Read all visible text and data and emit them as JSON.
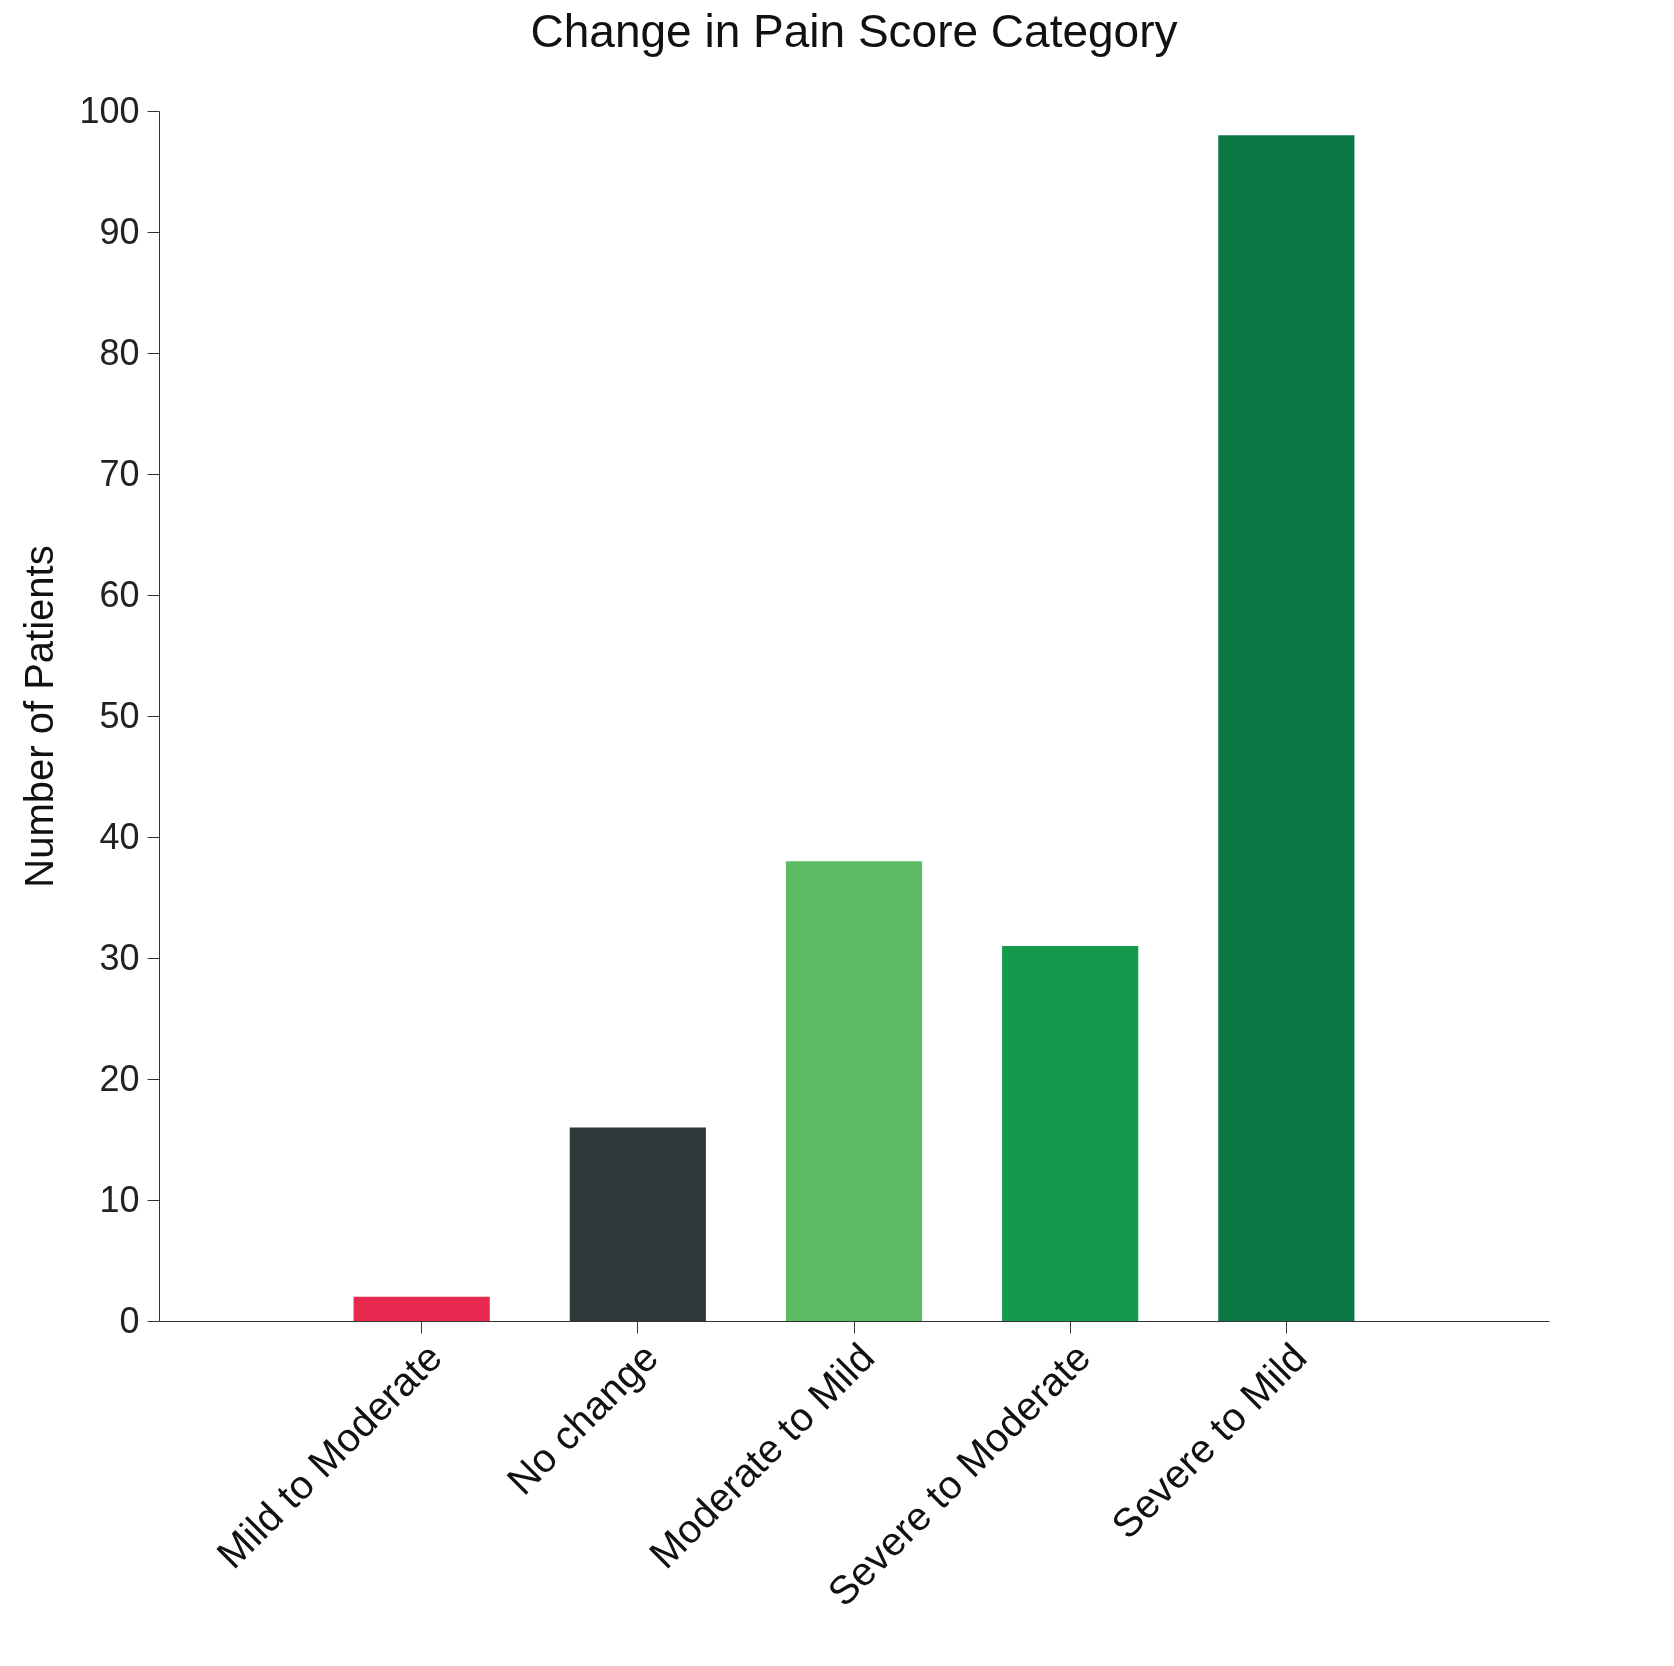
{
  "chart_data": {
    "type": "bar",
    "title": "Change in Pain Score Category",
    "ylabel": "Number of Patients",
    "categories": [
      "Mild to Moderate",
      "No change",
      "Moderate to Mild",
      "Severe to Moderate",
      "Severe to Mild"
    ],
    "values": [
      2,
      16,
      38,
      31,
      98
    ],
    "colors": [
      "#e8294f",
      "#31393c",
      "#5dbb63",
      "#149a4d",
      "#0b7743"
    ],
    "ylim": [
      0,
      100
    ],
    "yticks": [
      0,
      10,
      20,
      30,
      40,
      50,
      60,
      70,
      80,
      90,
      100
    ],
    "grid": false
  }
}
